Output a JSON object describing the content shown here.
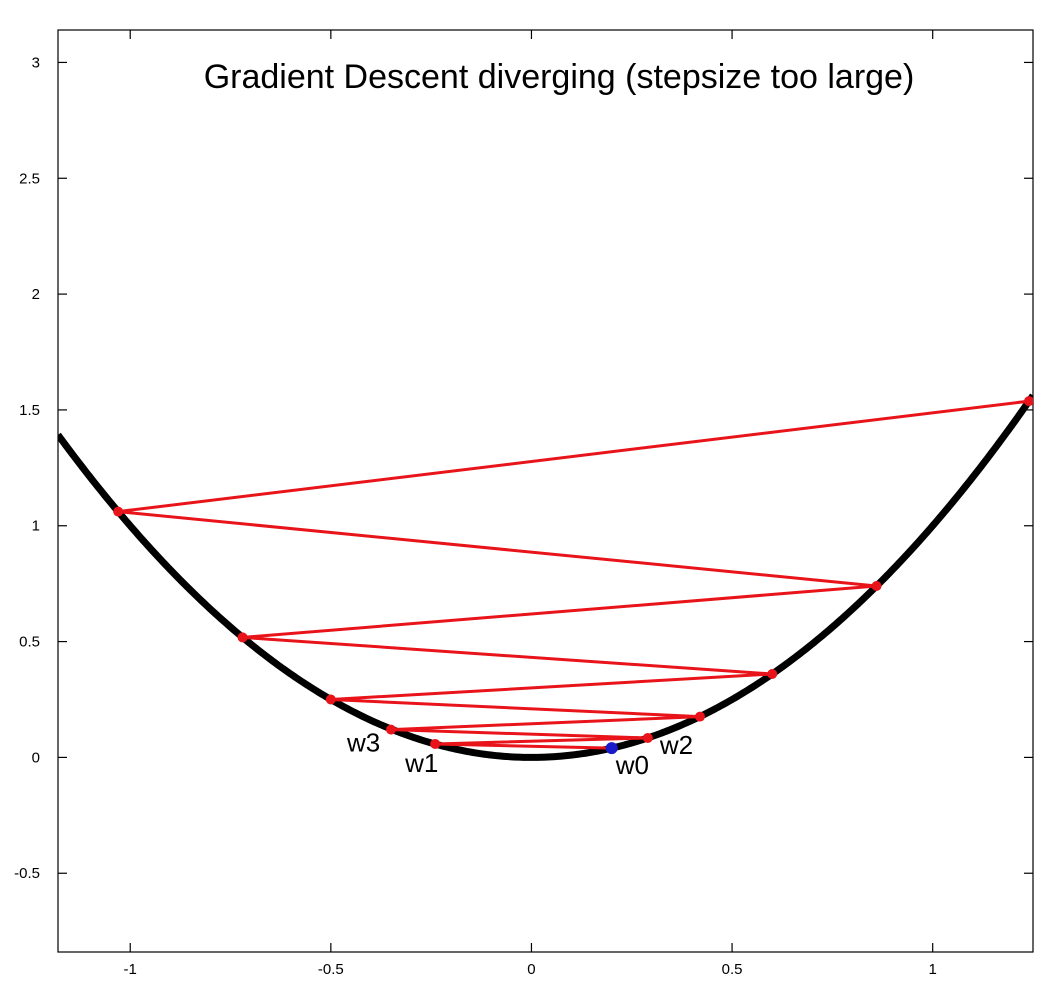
{
  "chart_data": {
    "type": "line",
    "title": "Gradient Descent diverging (stepsize too large)",
    "xlabel": "",
    "ylabel": "",
    "xlim": [
      -1.18,
      1.25
    ],
    "ylim": [
      -0.84,
      3.14
    ],
    "xticks": [
      -1,
      -0.5,
      0,
      0.5,
      1
    ],
    "xtick_labels": [
      "-1",
      "-0.5",
      "0",
      "0.5",
      "1"
    ],
    "yticks": [
      -0.5,
      0,
      0.5,
      1,
      1.5,
      2,
      2.5,
      3
    ],
    "ytick_labels": [
      "-0.5",
      "0",
      "0.5",
      "1",
      "1.5",
      "2",
      "2.5",
      "3"
    ],
    "grid": false,
    "series": [
      {
        "kind": "function-curve",
        "description_formula": "y = x^2",
        "color": "#000000"
      },
      {
        "kind": "iterates",
        "color": "#e8141a",
        "x": [
          0.2,
          -0.24,
          0.29,
          -0.35,
          0.42,
          -0.5,
          0.6,
          -0.72,
          0.86,
          -1.03,
          1.24
        ],
        "y": [
          0.04,
          0.058,
          0.084,
          0.12,
          0.176,
          0.25,
          0.36,
          0.518,
          0.74,
          1.061,
          1.538
        ]
      }
    ],
    "start_point": {
      "x": 0.2,
      "y": 0.04,
      "color": "#1a1acc"
    },
    "annotations": [
      {
        "text": "w0",
        "x": 0.2,
        "y": 0.04
      },
      {
        "text": "w1",
        "x": -0.24,
        "y": 0.058
      },
      {
        "text": "w2",
        "x": 0.29,
        "y": 0.084
      },
      {
        "text": "w3",
        "x": -0.35,
        "y": 0.12
      }
    ]
  }
}
